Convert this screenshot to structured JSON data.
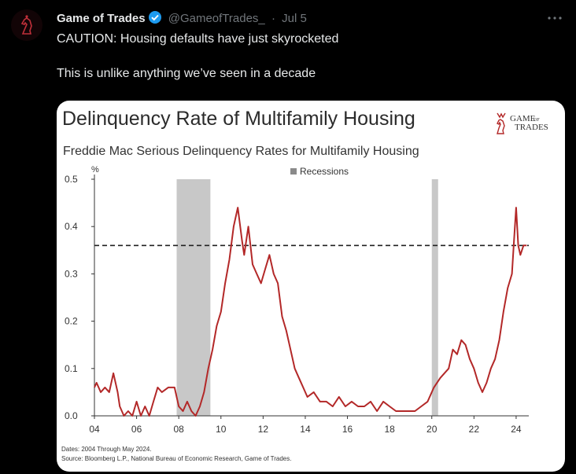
{
  "tweet": {
    "display_name": "Game of Trades",
    "handle": "@GameofTrades_",
    "separator": "·",
    "date": "Jul 5",
    "text_line1": "CAUTION: Housing defaults have just skyrocketed",
    "text_line2": "This is unlike anything we’ve seen in a decade",
    "icons": [
      "verified-badge-icon",
      "more-options-icon",
      "avatar-knight-icon"
    ],
    "colors": {
      "background": "#000000",
      "text": "#e7e9ea",
      "muted": "#71767b",
      "verified": "#1d9bf0"
    }
  },
  "logo": {
    "line1": "GAME",
    "line2": "OF",
    "line3": "TRADES"
  },
  "chart_data": {
    "type": "line",
    "title": "Delinquency Rate of Multifamily Housing",
    "subtitle": "Freddie Mac Serious Delinquency Rates for Multifamily Housing",
    "ylabel": "%",
    "legend": "Recessions",
    "legend_placement": "top-center",
    "x_ticks": [
      "04",
      "06",
      "08",
      "10",
      "12",
      "14",
      "16",
      "18",
      "20",
      "22",
      "24"
    ],
    "y_ticks": [
      "0.0",
      "0.1",
      "0.2",
      "0.3",
      "0.4",
      "0.5"
    ],
    "xlim": [
      2004,
      2024.6
    ],
    "ylim": [
      0,
      0.5
    ],
    "grid": false,
    "reference_line": 0.36,
    "recessions": [
      [
        2007.9,
        2009.5
      ],
      [
        2020.0,
        2020.3
      ]
    ],
    "series_color": "#b32828",
    "recession_color": "#c8c8c8",
    "series": [
      {
        "x": [
          2004.0,
          2004.1,
          2004.3,
          2004.5,
          2004.7,
          2004.9,
          2005.1,
          2005.2,
          2005.4,
          2005.6,
          2005.8,
          2006.0,
          2006.2,
          2006.4,
          2006.6,
          2006.8,
          2007.0,
          2007.2,
          2007.5,
          2007.8,
          2008.0,
          2008.2,
          2008.4,
          2008.6,
          2008.8,
          2009.0,
          2009.2,
          2009.4,
          2009.6,
          2009.8,
          2010.0,
          2010.2,
          2010.4,
          2010.6,
          2010.8,
          2011.0,
          2011.1,
          2011.3,
          2011.5,
          2011.7,
          2011.9,
          2012.1,
          2012.3,
          2012.5,
          2012.7,
          2012.9,
          2013.1,
          2013.3,
          2013.5,
          2013.7,
          2013.9,
          2014.1,
          2014.4,
          2014.7,
          2015.0,
          2015.3,
          2015.6,
          2015.9,
          2016.2,
          2016.5,
          2016.8,
          2017.1,
          2017.4,
          2017.7,
          2018.0,
          2018.3,
          2018.6,
          2018.9,
          2019.2,
          2019.5,
          2019.8,
          2020.1,
          2020.4,
          2020.6,
          2020.8,
          2021.0,
          2021.2,
          2021.4,
          2021.6,
          2021.8,
          2022.0,
          2022.2,
          2022.4,
          2022.6,
          2022.8,
          2023.0,
          2023.2,
          2023.4,
          2023.6,
          2023.8,
          2023.9,
          2024.0,
          2024.1,
          2024.2,
          2024.35,
          2024.5
        ],
        "values": [
          0.06,
          0.07,
          0.05,
          0.06,
          0.05,
          0.09,
          0.05,
          0.02,
          0.0,
          0.01,
          0.0,
          0.03,
          0.0,
          0.02,
          0.0,
          0.03,
          0.06,
          0.05,
          0.06,
          0.06,
          0.02,
          0.01,
          0.03,
          0.01,
          0.0,
          0.02,
          0.05,
          0.1,
          0.14,
          0.19,
          0.22,
          0.28,
          0.33,
          0.4,
          0.44,
          0.37,
          0.34,
          0.4,
          0.32,
          0.3,
          0.28,
          0.31,
          0.34,
          0.3,
          0.28,
          0.21,
          0.18,
          0.14,
          0.1,
          0.08,
          0.06,
          0.04,
          0.05,
          0.03,
          0.03,
          0.02,
          0.04,
          0.02,
          0.03,
          0.02,
          0.02,
          0.03,
          0.01,
          0.03,
          0.02,
          0.01,
          0.01,
          0.01,
          0.01,
          0.02,
          0.03,
          0.06,
          0.08,
          0.09,
          0.1,
          0.14,
          0.13,
          0.16,
          0.15,
          0.12,
          0.1,
          0.07,
          0.05,
          0.07,
          0.1,
          0.12,
          0.16,
          0.22,
          0.27,
          0.3,
          0.37,
          0.44,
          0.36,
          0.34,
          0.36,
          0.36
        ]
      }
    ],
    "footnotes": [
      "Dates: 2004 Through May 2024.",
      "Source: Bloomberg L.P., National Bureau of Economic Research, Game of Trades."
    ]
  }
}
